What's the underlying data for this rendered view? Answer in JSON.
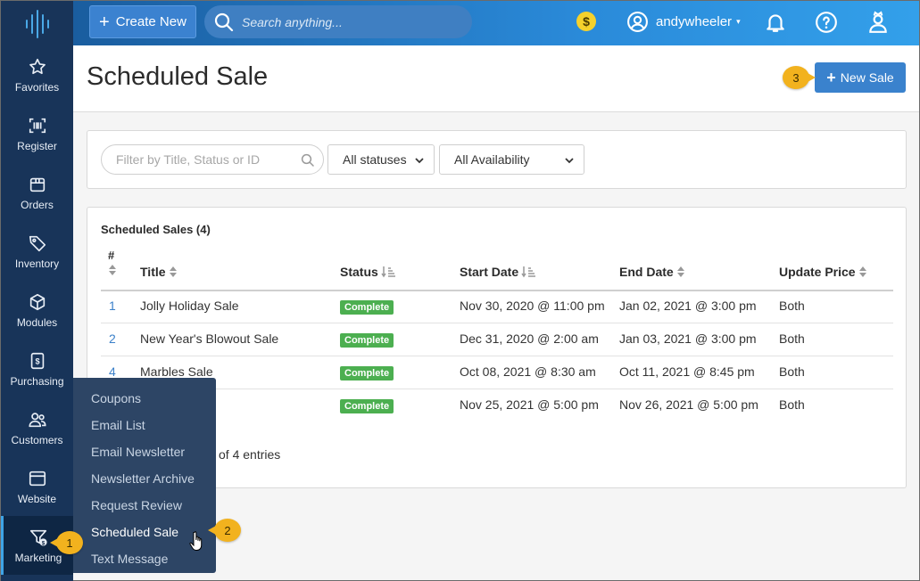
{
  "topbar": {
    "create_label": "Create New",
    "search_placeholder": "Search anything...",
    "coin_symbol": "$",
    "username": "andywheeler",
    "caret": "▾"
  },
  "sidebar": {
    "items": [
      {
        "label": "Favorites",
        "icon": "star-icon"
      },
      {
        "label": "Register",
        "icon": "barcode-icon"
      },
      {
        "label": "Orders",
        "icon": "box-icon"
      },
      {
        "label": "Inventory",
        "icon": "tag-icon"
      },
      {
        "label": "Modules",
        "icon": "cube-icon"
      },
      {
        "label": "Purchasing",
        "icon": "invoice-icon"
      },
      {
        "label": "Customers",
        "icon": "users-icon"
      },
      {
        "label": "Website",
        "icon": "browser-icon"
      },
      {
        "label": "Marketing",
        "icon": "funnel-dollar-icon",
        "active": true
      }
    ]
  },
  "page": {
    "title": "Scheduled Sale",
    "new_button": "New Sale"
  },
  "filters": {
    "search_placeholder": "Filter by Title, Status or ID",
    "status_select": "All statuses",
    "availability_select": "All Availability"
  },
  "table": {
    "heading": "Scheduled Sales (4)",
    "columns": {
      "id": "#",
      "title": "Title",
      "status": "Status",
      "start": "Start Date",
      "end": "End Date",
      "price": "Update Price"
    },
    "rows": [
      {
        "id": "1",
        "title": "Jolly Holiday Sale",
        "status": "Complete",
        "start": "Nov 30, 2020 @ 11:00 pm",
        "end": "Jan 02, 2021 @ 3:00 pm",
        "price": "Both"
      },
      {
        "id": "2",
        "title": "New Year's Blowout Sale",
        "status": "Complete",
        "start": "Dec 31, 2020 @ 2:00 am",
        "end": "Jan 03, 2021 @ 3:00 pm",
        "price": "Both"
      },
      {
        "id": "4",
        "title": "Marbles Sale",
        "status": "Complete",
        "start": "Oct 08, 2021 @ 8:30 am",
        "end": "Oct 11, 2021 @ 8:45 pm",
        "price": "Both"
      },
      {
        "id": "",
        "title": "",
        "status": "Complete",
        "start": "Nov 25, 2021 @ 5:00 pm",
        "end": "Nov 26, 2021 @ 5:00 pm",
        "price": "Both"
      }
    ],
    "entries_text": "of 4 entries"
  },
  "flyout": {
    "items": [
      "Coupons",
      "Email List",
      "Email Newsletter",
      "Newsletter Archive",
      "Request Review",
      "Scheduled Sale",
      "Text Message"
    ]
  },
  "callouts": {
    "one": "1",
    "two": "2",
    "three": "3"
  },
  "colors": {
    "sidebar": "#183459",
    "accent": "#3a82cd",
    "badge": "#4caf50",
    "callout": "#f2b21e"
  }
}
